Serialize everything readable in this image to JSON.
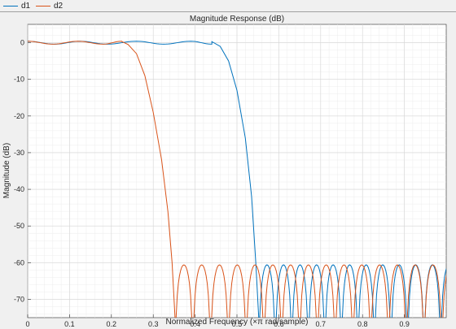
{
  "legend": {
    "items": [
      {
        "label": "d1",
        "color": "#0072BD"
      },
      {
        "label": "d2",
        "color": "#D95319"
      }
    ]
  },
  "chart_data": {
    "type": "line",
    "title": "Magnitude Response (dB)",
    "xlabel": "Normalized Frequency (×π rad/sample)",
    "ylabel": "Magnitude (dB)",
    "xlim": [
      0,
      1
    ],
    "ylim": [
      -75,
      5
    ],
    "xticks": [
      0,
      0.1,
      0.2,
      0.3,
      0.4,
      0.5,
      0.6,
      0.7,
      0.8,
      0.9
    ],
    "xtick_labels": [
      "0",
      "0.1",
      "0.2",
      "0.3",
      "0.4",
      "0.5",
      "0.6",
      "0.7",
      "0.8",
      "0.9"
    ],
    "yticks": [
      0,
      -10,
      -20,
      -30,
      -40,
      -50,
      -60,
      -70
    ],
    "ytick_labels": [
      "0",
      "-10",
      "-20",
      "-30",
      "-40",
      "-50",
      "-60",
      "-70"
    ],
    "grid": true,
    "minor_grid": true,
    "series": [
      {
        "name": "d1",
        "color": "#0072BD",
        "passband": {
          "end": 0.44,
          "ripple_db": 0.4,
          "ripple_freqs": [
            0.0,
            0.065,
            0.125,
            0.19,
            0.26,
            0.325,
            0.39
          ]
        },
        "transition": [
          [
            0.44,
            0.3
          ],
          [
            0.46,
            -1
          ],
          [
            0.48,
            -5
          ],
          [
            0.5,
            -13
          ],
          [
            0.52,
            -26
          ],
          [
            0.535,
            -42
          ],
          [
            0.545,
            -60
          ],
          [
            0.552,
            -75
          ]
        ],
        "stopband": {
          "start": 0.552,
          "level_db": -60.6,
          "lobe_width": 0.0395,
          "end": 1.0
        }
      },
      {
        "name": "d2",
        "color": "#D95319",
        "passband": {
          "end": 0.225,
          "ripple_db": 0.4,
          "ripple_freqs": [
            0.0,
            0.06,
            0.12,
            0.18
          ]
        },
        "transition": [
          [
            0.225,
            0.3
          ],
          [
            0.24,
            -0.5
          ],
          [
            0.26,
            -3
          ],
          [
            0.28,
            -9
          ],
          [
            0.3,
            -19
          ],
          [
            0.32,
            -32
          ],
          [
            0.335,
            -46
          ],
          [
            0.345,
            -60
          ],
          [
            0.352,
            -75
          ]
        ],
        "stopband": {
          "start": 0.352,
          "level_db": -60.6,
          "lobe_width": 0.0425,
          "end": 1.0
        }
      }
    ]
  }
}
